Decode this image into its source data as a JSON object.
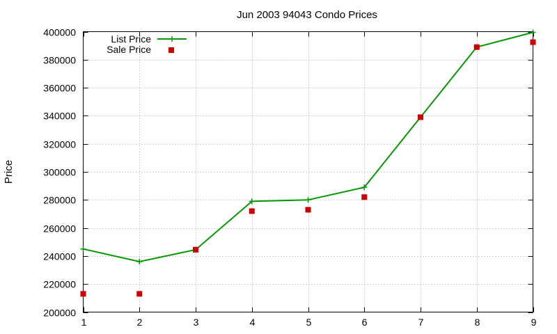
{
  "chart_data": {
    "type": "line",
    "title": "Jun 2003 94043 Condo Prices",
    "xlabel": "",
    "ylabel": "Price",
    "x": [
      1,
      2,
      3,
      4,
      5,
      6,
      7,
      8,
      9
    ],
    "xlim": [
      1,
      9
    ],
    "ylim": [
      200000,
      400000
    ],
    "xticks": [
      1,
      2,
      3,
      4,
      5,
      6,
      7,
      8,
      9
    ],
    "yticks": [
      200000,
      220000,
      240000,
      260000,
      280000,
      300000,
      320000,
      340000,
      360000,
      380000,
      400000
    ],
    "grid": true,
    "legend_position": "top-left",
    "series": [
      {
        "name": "List Price",
        "style": "linespoints",
        "marker": "plus",
        "color": "#009900",
        "values": [
          245000,
          236000,
          244500,
          279000,
          280000,
          289000,
          339000,
          389000,
          399500
        ]
      },
      {
        "name": "Sale Price",
        "style": "points",
        "marker": "square",
        "color": "#cc0000",
        "values": [
          213000,
          213000,
          244500,
          272000,
          273000,
          282000,
          339000,
          389000,
          392500
        ]
      }
    ]
  }
}
